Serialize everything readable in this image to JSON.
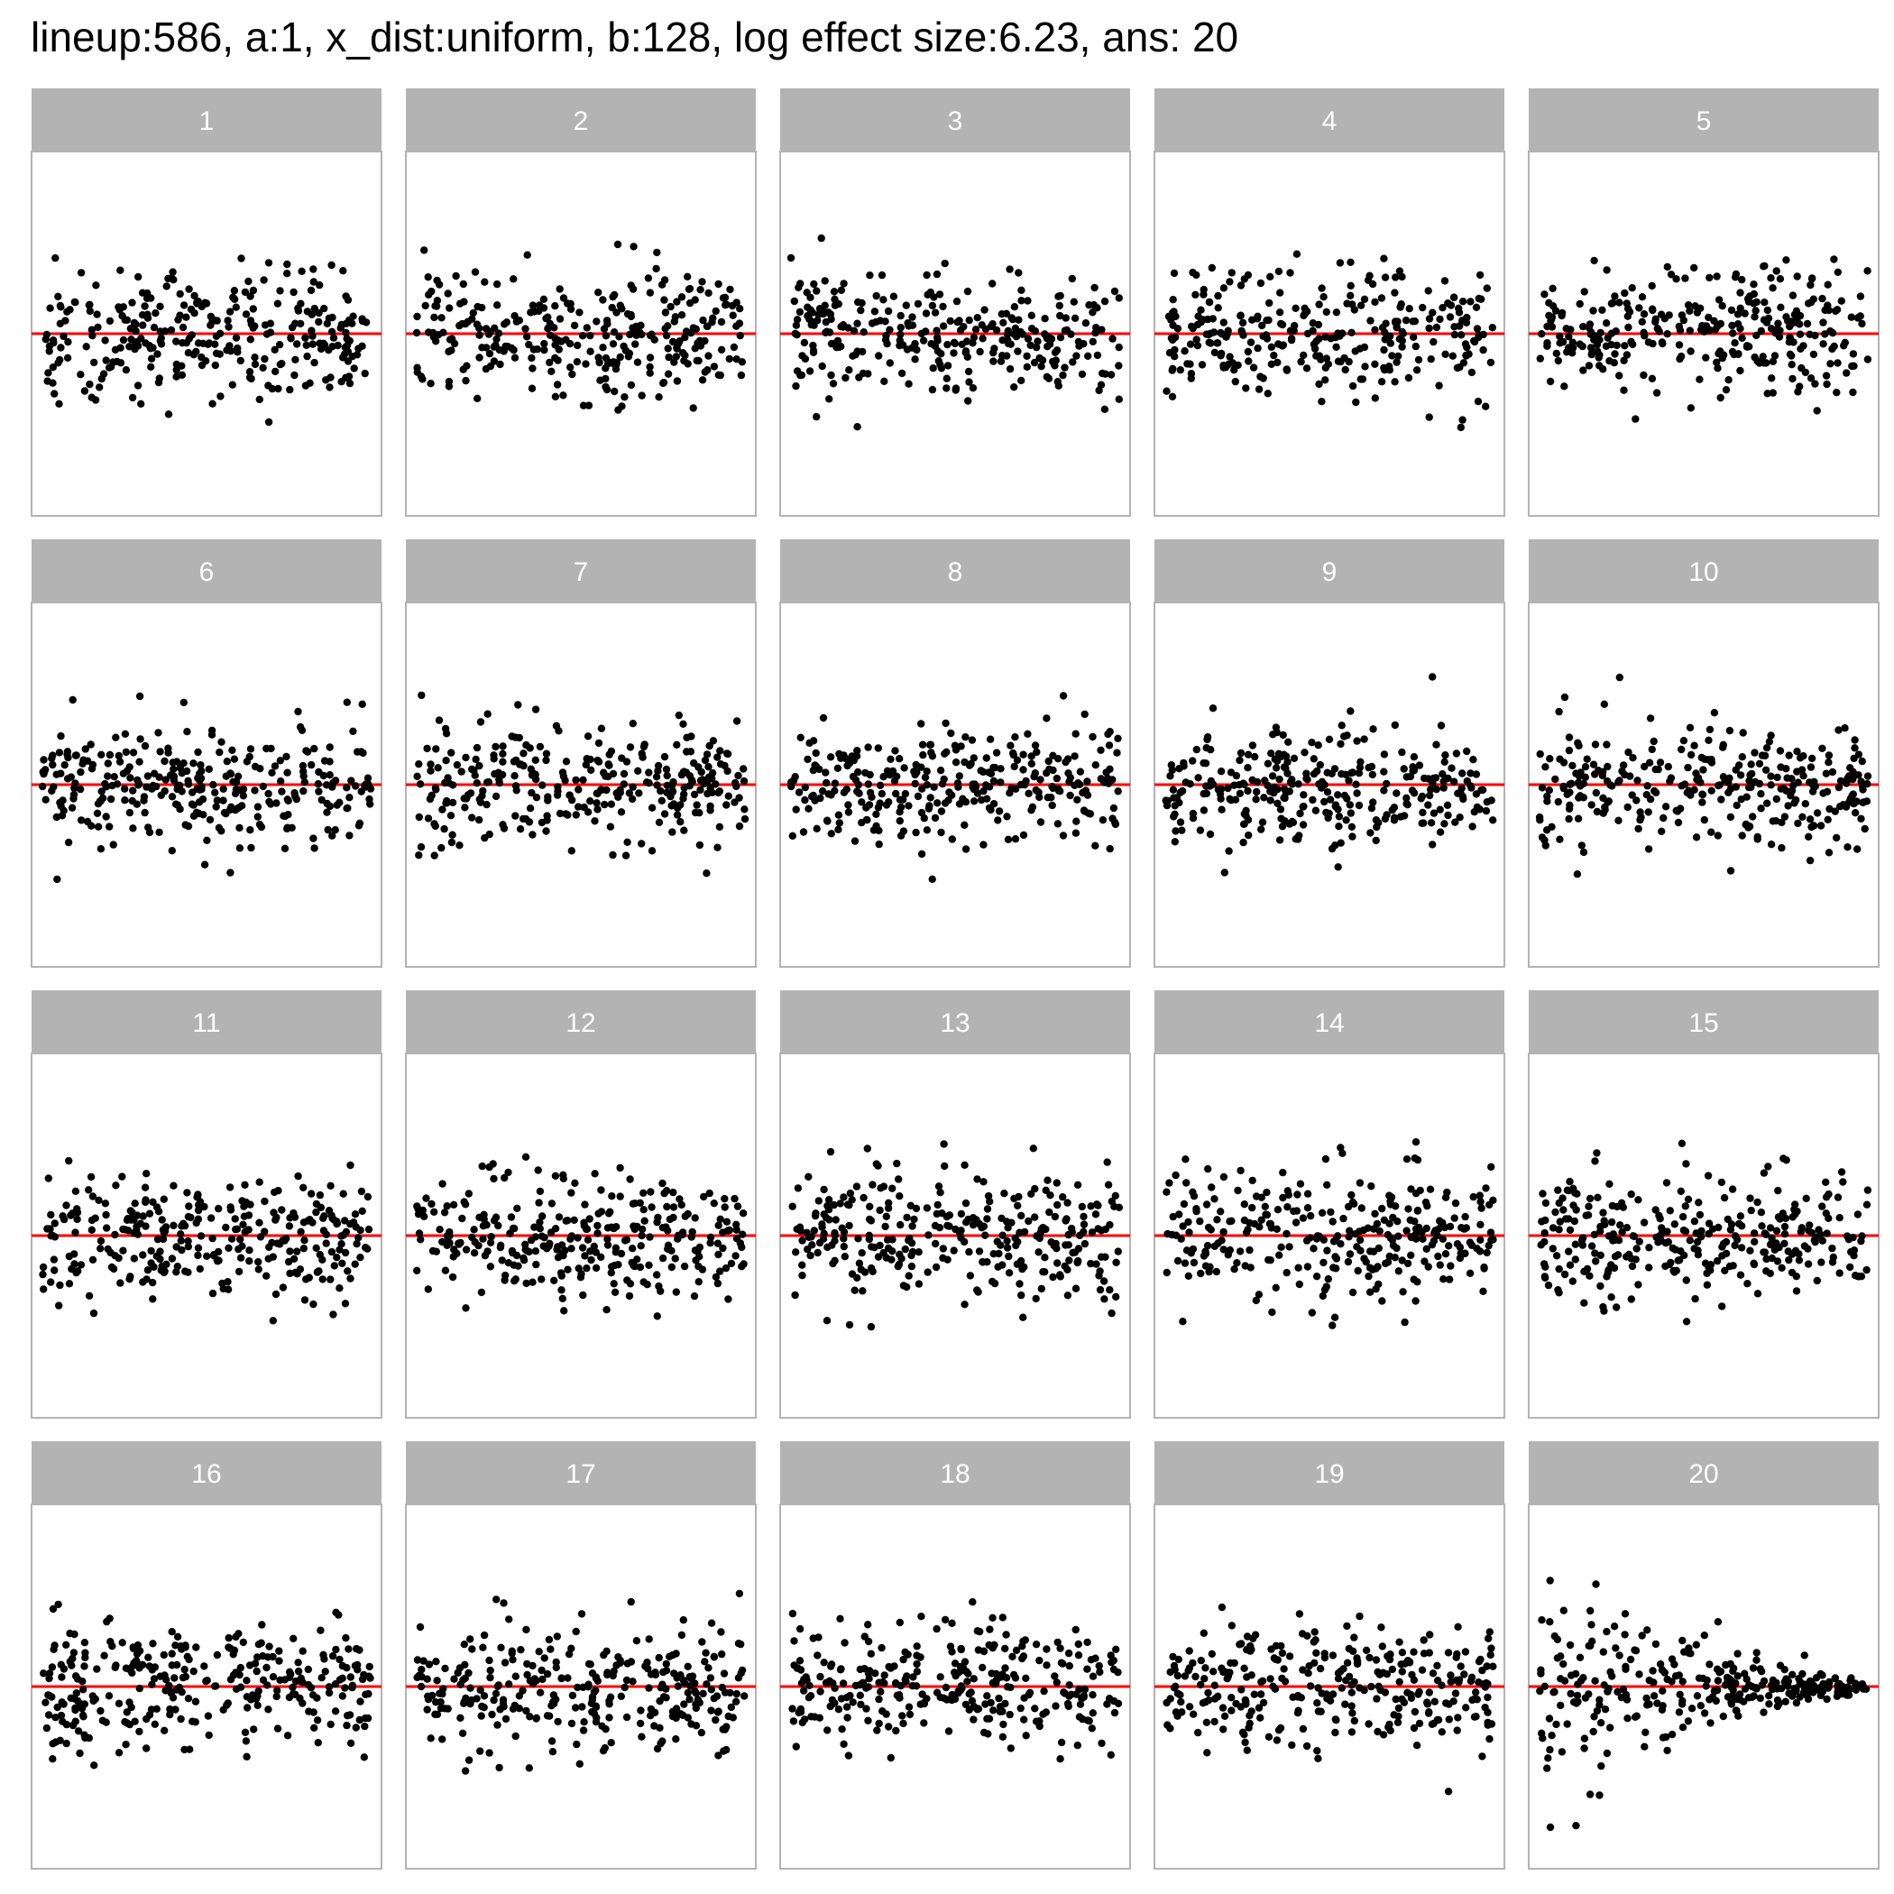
{
  "chart_data": {
    "type": "scatter",
    "title": "lineup:586, a:1, x_dist:uniform, b:128, log effect size:6.23, ans: 20",
    "facet_labels": [
      "1",
      "2",
      "3",
      "4",
      "5",
      "6",
      "7",
      "8",
      "9",
      "10",
      "11",
      "12",
      "13",
      "14",
      "15",
      "16",
      "17",
      "18",
      "19",
      "20"
    ],
    "layout": {
      "rows": 4,
      "cols": 5
    },
    "reference_line": {
      "y": 0,
      "color": "#ff0000"
    },
    "strip_color": "#b3b3b3",
    "panel_border_color": "#b3b3b3",
    "point_color": "#000000",
    "axes_shown": false,
    "grid": false,
    "answer_panel": "20",
    "ylim": [
      -3.6,
      3.6
    ],
    "xlim": [
      0,
      1
    ]
  }
}
